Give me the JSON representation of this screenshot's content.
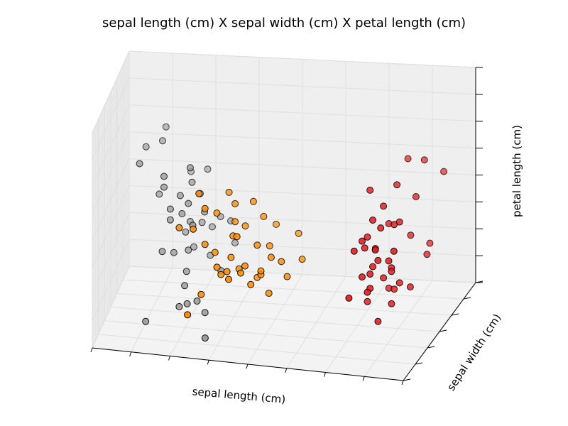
{
  "chart_data": {
    "type": "scatter",
    "projection": "3d",
    "title": "sepal length (cm) X sepal width (cm) X petal length (cm)",
    "xlabel": "sepal length (cm)",
    "ylabel": "sepal width (cm)",
    "zlabel": "petal length (cm)",
    "grid": true,
    "tick_labels_visible": false,
    "xlim": [
      4,
      8
    ],
    "ylim": [
      2,
      4.5
    ],
    "zlim": [
      1,
      7
    ],
    "series": [
      {
        "color": "#ff8c00",
        "points": [
          [
            5.2,
            2.7,
            4.9
          ],
          [
            5.3,
            2.6,
            4.6
          ],
          [
            5.5,
            3.0,
            4.7
          ],
          [
            5.6,
            2.9,
            4.5
          ],
          [
            5.2,
            2.4,
            4.2
          ],
          [
            5.4,
            2.8,
            4.3
          ],
          [
            5.8,
            3.0,
            4.5
          ],
          [
            5.0,
            2.5,
            4.1
          ],
          [
            5.6,
            2.9,
            4.0
          ],
          [
            5.7,
            2.6,
            3.9
          ],
          [
            5.9,
            3.1,
            4.0
          ],
          [
            6.0,
            3.3,
            3.6
          ],
          [
            5.6,
            2.8,
            3.7
          ],
          [
            5.3,
            2.6,
            3.6
          ],
          [
            5.7,
            3.0,
            3.8
          ],
          [
            6.0,
            3.0,
            3.3
          ],
          [
            5.4,
            2.7,
            3.3
          ],
          [
            6.3,
            3.2,
            3.5
          ],
          [
            6.2,
            2.8,
            3.1
          ],
          [
            5.6,
            2.7,
            3.2
          ],
          [
            5.8,
            2.6,
            3.1
          ],
          [
            6.1,
            2.7,
            3.3
          ],
          [
            5.7,
            2.7,
            2.9
          ],
          [
            5.5,
            2.6,
            2.8
          ],
          [
            5.9,
            2.8,
            2.6
          ],
          [
            5.9,
            2.5,
            2.7
          ],
          [
            5.3,
            2.4,
            2.4
          ],
          [
            6.1,
            2.6,
            2.4
          ],
          [
            5.2,
            2.1,
            2.1
          ],
          [
            5.8,
            2.4,
            3.1
          ],
          [
            6.4,
            3.0,
            3.0
          ],
          [
            6.0,
            2.6,
            2.9
          ],
          [
            5.6,
            2.5,
            3.0
          ],
          [
            5.5,
            2.4,
            3.2
          ],
          [
            6.0,
            2.6,
            3.0
          ],
          [
            5.9,
            2.8,
            3.5
          ],
          [
            5.7,
            2.2,
            3.1
          ],
          [
            6.3,
            2.7,
            2.8
          ]
        ]
      },
      {
        "color": "#999999",
        "points": [
          [
            4.6,
            3.6,
            5.8
          ],
          [
            4.4,
            3.4,
            5.4
          ],
          [
            4.6,
            3.4,
            5.6
          ],
          [
            4.4,
            3.0,
            5.3
          ],
          [
            5.0,
            3.1,
            5.2
          ],
          [
            4.7,
            3.0,
            5.0
          ],
          [
            5.0,
            3.2,
            4.7
          ],
          [
            4.9,
            3.0,
            4.5
          ],
          [
            4.7,
            3.0,
            4.7
          ],
          [
            5.1,
            3.2,
            4.4
          ],
          [
            4.8,
            2.9,
            4.2
          ],
          [
            5.0,
            3.0,
            4.3
          ],
          [
            5.2,
            3.0,
            4.1
          ],
          [
            4.8,
            2.9,
            3.9
          ],
          [
            5.1,
            2.8,
            3.9
          ],
          [
            4.9,
            3.1,
            3.9
          ],
          [
            5.0,
            3.1,
            3.7
          ],
          [
            5.3,
            3.4,
            3.6
          ],
          [
            5.1,
            3.3,
            3.5
          ],
          [
            5.4,
            3.5,
            3.4
          ],
          [
            5.2,
            3.4,
            3.3
          ],
          [
            4.9,
            3.3,
            3.2
          ],
          [
            4.7,
            2.9,
            3.0
          ],
          [
            5.0,
            3.0,
            3.0
          ],
          [
            5.5,
            3.3,
            3.0
          ],
          [
            4.8,
            3.1,
            2.8
          ],
          [
            5.0,
            3.3,
            2.8
          ],
          [
            5.2,
            3.3,
            2.6
          ],
          [
            5.4,
            3.0,
            2.5
          ],
          [
            5.0,
            2.9,
            2.5
          ],
          [
            5.0,
            2.8,
            2.2
          ],
          [
            5.1,
            2.5,
            2.0
          ],
          [
            5.2,
            2.6,
            2.0
          ],
          [
            5.0,
            2.5,
            1.9
          ],
          [
            4.6,
            2.4,
            1.5
          ],
          [
            5.3,
            2.6,
            1.7
          ],
          [
            5.4,
            2.2,
            1.4
          ],
          [
            4.9,
            3.6,
            4.6
          ],
          [
            5.1,
            3.6,
            4.7
          ],
          [
            4.6,
            3.2,
            4.3
          ]
        ]
      },
      {
        "color": "#e31a1c",
        "points": [
          [
            7.3,
            2.8,
            5.3
          ],
          [
            7.6,
            2.9,
            5.4
          ],
          [
            7.5,
            2.7,
            5.0
          ],
          [
            7.4,
            2.6,
            4.7
          ],
          [
            7.7,
            2.7,
            4.6
          ],
          [
            7.3,
            2.5,
            4.2
          ],
          [
            7.5,
            2.6,
            4.5
          ],
          [
            7.5,
            2.9,
            4.3
          ],
          [
            7.3,
            2.6,
            3.9
          ],
          [
            7.7,
            2.5,
            4.0
          ],
          [
            7.7,
            3.1,
            3.8
          ],
          [
            7.2,
            2.5,
            3.9
          ],
          [
            7.5,
            2.5,
            3.7
          ],
          [
            7.4,
            2.7,
            3.8
          ],
          [
            7.6,
            2.6,
            3.6
          ],
          [
            7.4,
            2.5,
            3.3
          ],
          [
            7.6,
            2.7,
            3.3
          ],
          [
            7.3,
            2.5,
            3.2
          ],
          [
            7.6,
            2.7,
            3.2
          ],
          [
            7.4,
            2.4,
            2.9
          ],
          [
            7.7,
            2.7,
            2.9
          ],
          [
            7.4,
            2.5,
            2.9
          ],
          [
            7.2,
            2.3,
            2.8
          ],
          [
            7.6,
            2.8,
            2.6
          ],
          [
            7.5,
            2.9,
            2.5
          ],
          [
            7.3,
            2.7,
            2.3
          ],
          [
            7.6,
            2.7,
            2.3
          ],
          [
            7.5,
            2.5,
            2.0
          ],
          [
            7.8,
            2.8,
            2.7
          ],
          [
            7.9,
            3.1,
            3.3
          ],
          [
            7.9,
            3.2,
            3.5
          ],
          [
            8.0,
            3.4,
            5.3
          ],
          [
            7.8,
            3.0,
            5.0
          ],
          [
            7.8,
            3.3,
            5.7
          ],
          [
            7.6,
            3.3,
            5.7
          ],
          [
            7.3,
            2.7,
            4.1
          ],
          [
            7.4,
            2.6,
            3.4
          ],
          [
            7.6,
            2.8,
            4.4
          ],
          [
            7.5,
            2.4,
            4.1
          ],
          [
            7.5,
            2.7,
            3.0
          ]
        ]
      }
    ]
  }
}
